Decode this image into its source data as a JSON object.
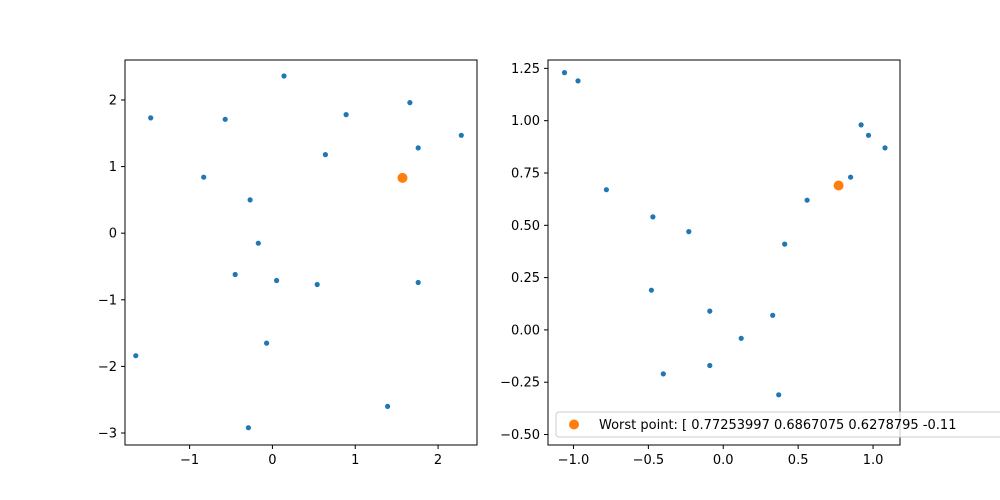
{
  "chart_data": [
    {
      "type": "scatter",
      "xlim": [
        -1.78,
        2.47
      ],
      "ylim": [
        -3.18,
        2.6
      ],
      "xticks": [
        -1,
        0,
        1,
        2
      ],
      "yticks": [
        -3,
        -2,
        -1,
        0,
        1,
        2
      ],
      "xtick_labels": [
        "−1",
        "0",
        "1",
        "2"
      ],
      "ytick_labels": [
        "−3",
        "−2",
        "−1",
        "0",
        "1",
        "2"
      ],
      "series": [
        {
          "color": "#1f77b4",
          "points": [
            [
              0.14,
              2.36
            ],
            [
              -1.47,
              1.73
            ],
            [
              -0.57,
              1.71
            ],
            [
              0.89,
              1.78
            ],
            [
              1.66,
              1.96
            ],
            [
              2.28,
              1.47
            ],
            [
              1.76,
              1.28
            ],
            [
              0.64,
              1.18
            ],
            [
              -0.83,
              0.84
            ],
            [
              -0.27,
              0.5
            ],
            [
              -0.17,
              -0.15
            ],
            [
              -0.45,
              -0.62
            ],
            [
              0.05,
              -0.71
            ],
            [
              0.54,
              -0.77
            ],
            [
              1.76,
              -0.74
            ],
            [
              -1.65,
              -1.84
            ],
            [
              -0.07,
              -1.65
            ],
            [
              1.39,
              -2.6
            ],
            [
              -0.29,
              -2.92
            ]
          ]
        },
        {
          "color": "#ff7f0e",
          "points": [
            [
              1.57,
              0.83
            ]
          ]
        }
      ]
    },
    {
      "type": "scatter",
      "xlim": [
        -1.17,
        1.18
      ],
      "ylim": [
        -0.55,
        1.29
      ],
      "xticks": [
        -1.0,
        -0.5,
        0.0,
        0.5,
        1.0
      ],
      "yticks": [
        -0.5,
        -0.25,
        0.0,
        0.25,
        0.5,
        0.75,
        1.0,
        1.25
      ],
      "xtick_labels": [
        "−1.0",
        "−0.5",
        "0.0",
        "0.5",
        "1.0"
      ],
      "ytick_labels": [
        "−0.50",
        "−0.25",
        "0.00",
        "0.25",
        "0.50",
        "0.75",
        "1.00",
        "1.25"
      ],
      "series": [
        {
          "color": "#1f77b4",
          "points": [
            [
              -1.06,
              1.23
            ],
            [
              -0.97,
              1.19
            ],
            [
              -0.78,
              0.67
            ],
            [
              -0.47,
              0.54
            ],
            [
              -0.23,
              0.47
            ],
            [
              -0.48,
              0.19
            ],
            [
              -0.09,
              0.09
            ],
            [
              -0.4,
              -0.21
            ],
            [
              -0.09,
              -0.17
            ],
            [
              0.12,
              -0.04
            ],
            [
              0.33,
              0.07
            ],
            [
              0.37,
              -0.31
            ],
            [
              0.41,
              0.41
            ],
            [
              0.56,
              0.62
            ],
            [
              0.85,
              0.73
            ],
            [
              0.92,
              0.98
            ],
            [
              0.97,
              0.93
            ],
            [
              1.08,
              0.87
            ]
          ]
        },
        {
          "name": "Worst point: [ 0.77253997  0.6867075   0.6278795  -0.11",
          "color": "#ff7f0e",
          "points": [
            [
              0.77,
              0.69
            ]
          ]
        }
      ],
      "legend": {
        "placement": "lower-right",
        "label": "Worst point: [ 0.77253997  0.6867075   0.6278795  -0.11"
      }
    }
  ]
}
